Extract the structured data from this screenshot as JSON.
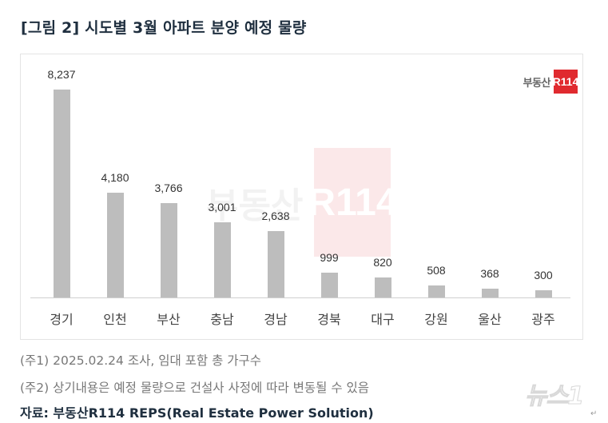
{
  "title": "[그림 2] 시도별 3월 아파트 분양 예정 물량",
  "logo": {
    "text": "부동산",
    "box": "R114",
    "brand_color": "#e02a2f"
  },
  "watermark": {
    "text": "부동산",
    "box": "R114"
  },
  "chart_data": {
    "type": "bar",
    "title": "시도별 3월 아파트 분양 예정 물량",
    "categories": [
      "경기",
      "인천",
      "부산",
      "충남",
      "경남",
      "경북",
      "대구",
      "강원",
      "울산",
      "광주"
    ],
    "values": [
      8237,
      4180,
      3766,
      3001,
      2638,
      999,
      820,
      508,
      368,
      300
    ],
    "value_labels": [
      "8,237",
      "4,180",
      "3,766",
      "3,001",
      "2,638",
      "999",
      "820",
      "508",
      "368",
      "300"
    ],
    "xlabel": "",
    "ylabel": "",
    "ylim": [
      0,
      9000
    ],
    "grid": false,
    "legend": "none",
    "bar_color": "#bdbdbd"
  },
  "notes": [
    "(주1) 2025.02.24 조사, 임대 포함 총 가구수",
    "(주2) 상기내용은 예정 물량으로 건설사 사정에 따라 변동될 수 있음"
  ],
  "source": "자료: 부동산R114 REPS(Real Estate Power Solution)",
  "news_watermark": "뉴스1"
}
